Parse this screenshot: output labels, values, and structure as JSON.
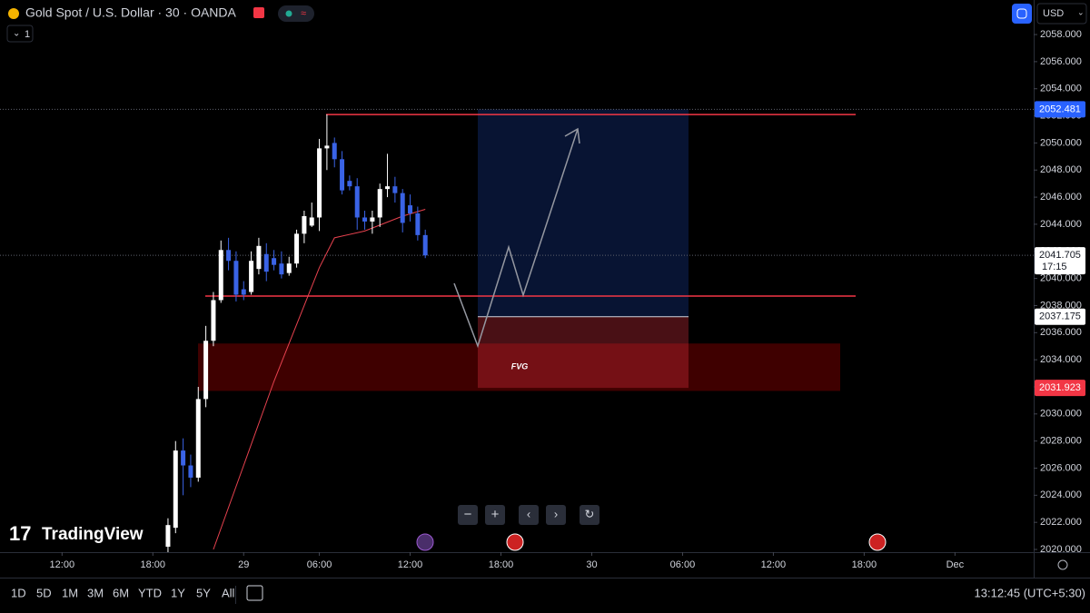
{
  "header": {
    "symbol": "Gold Spot / U.S. Dollar · 30 · OANDA",
    "indicator_count": 1,
    "currency": "USD"
  },
  "footer": {
    "ranges": [
      "1D",
      "5D",
      "1M",
      "3M",
      "6M",
      "YTD",
      "1Y",
      "5Y",
      "All"
    ],
    "clock": "13:12:45 (UTC+5:30)"
  },
  "brand": "TradingView",
  "chart_data": {
    "type": "candlestick",
    "x": [
      2,
      3,
      4,
      5,
      6,
      7,
      8,
      9,
      10,
      11,
      12,
      13,
      14,
      15,
      16,
      17,
      18,
      19,
      20,
      21,
      22,
      23,
      24,
      25,
      26,
      27,
      28,
      29,
      30,
      31,
      32,
      33,
      34,
      35,
      36
    ],
    "open": [
      2020.2,
      2021.6,
      2027.3,
      2026.2,
      2025.3,
      2031.1,
      2035.4,
      2038.4,
      2042.1,
      2041.3,
      2039.2,
      2039.0,
      2040.7,
      2041.8,
      2041.5,
      2041.1,
      2040.4,
      2041.1,
      2043.3,
      2043.9,
      2044.5,
      2049.6,
      2050.0,
      2048.8,
      2047.2,
      2046.8,
      2044.5,
      2044.2,
      2044.5,
      2046.6,
      2046.8,
      2046.3,
      2045.4,
      2044.8,
      2043.2
    ],
    "high": [
      2022.3,
      2028.0,
      2028.2,
      2027.0,
      2032.0,
      2036.5,
      2039.0,
      2042.8,
      2043.0,
      2042.0,
      2039.8,
      2042.0,
      2043.0,
      2042.6,
      2042.1,
      2042.0,
      2041.6,
      2043.6,
      2045.0,
      2045.6,
      2050.3,
      2052.1,
      2050.4,
      2049.4,
      2047.6,
      2047.4,
      2045.0,
      2045.0,
      2047.0,
      2049.2,
      2047.5,
      2046.6,
      2046.2,
      2045.3,
      2043.6
    ],
    "low": [
      2019.8,
      2021.2,
      2024.0,
      2024.6,
      2025.0,
      2030.5,
      2035.0,
      2038.2,
      2040.6,
      2038.3,
      2038.4,
      2038.8,
      2040.3,
      2039.8,
      2040.6,
      2040.0,
      2040.2,
      2040.8,
      2042.6,
      2043.8,
      2043.5,
      2048.0,
      2048.2,
      2046.2,
      2046.5,
      2043.6,
      2043.6,
      2043.3,
      2043.8,
      2046.0,
      2045.6,
      2043.4,
      2044.2,
      2042.8,
      2041.5
    ],
    "close": [
      2021.8,
      2027.3,
      2026.2,
      2025.3,
      2031.1,
      2035.4,
      2038.4,
      2042.1,
      2041.3,
      2038.8,
      2038.8,
      2041.3,
      2042.4,
      2040.5,
      2041.0,
      2040.3,
      2041.1,
      2043.3,
      2044.6,
      2044.5,
      2049.6,
      2049.8,
      2048.8,
      2046.5,
      2046.8,
      2044.5,
      2044.2,
      2044.5,
      2046.6,
      2046.8,
      2046.3,
      2044.1,
      2044.8,
      2043.2,
      2041.7
    ],
    "up_color": "#ffffff",
    "down_color": "#3a63e6",
    "ma": {
      "color": "#e8424f",
      "x": [
        8,
        12,
        16,
        20,
        22,
        24,
        28,
        33,
        36
      ],
      "values": [
        2020.0,
        2026.2,
        2032.4,
        2038.0,
        2040.8,
        2043.0,
        2043.5,
        2044.6,
        2045.1
      ]
    },
    "levels": [
      2052.1,
      2038.7
    ],
    "fvg": {
      "label": "FVG",
      "low": 2031.7,
      "high": 2035.2
    },
    "position": {
      "target": 2052.481,
      "entry": 2037.175,
      "stop": 2031.923
    },
    "last_price": 2041.705,
    "countdown": "17:15",
    "xlim": [
      -20.2,
      116.4
    ],
    "ylim": [
      2019.8,
      2060.55
    ],
    "xticks": [
      {
        "value": -12,
        "label": "12:00"
      },
      {
        "value": 0,
        "label": "18:00"
      },
      {
        "value": 12,
        "label": "29"
      },
      {
        "value": 22,
        "label": "06:00"
      },
      {
        "value": 34,
        "label": "12:00"
      },
      {
        "value": 46,
        "label": "18:00"
      },
      {
        "value": 58,
        "label": "30"
      },
      {
        "value": 70,
        "label": "06:00"
      },
      {
        "value": 82,
        "label": "12:00"
      },
      {
        "value": 94,
        "label": "18:00"
      },
      {
        "value": 106,
        "label": "Dec"
      }
    ],
    "yticks": [
      {
        "value": 2020,
        "label": "2020.000"
      },
      {
        "value": 2022,
        "label": "2022.000"
      },
      {
        "value": 2024,
        "label": "2024.000"
      },
      {
        "value": 2026,
        "label": "2026.000"
      },
      {
        "value": 2028,
        "label": "2028.000"
      },
      {
        "value": 2030,
        "label": "2030.000"
      },
      {
        "value": 2032,
        "label": "2032.000"
      },
      {
        "value": 2034,
        "label": "2034.000"
      },
      {
        "value": 2036,
        "label": "2036.000"
      },
      {
        "value": 2038,
        "label": "2038.000"
      },
      {
        "value": 2040,
        "label": "2040.000"
      },
      {
        "value": 2042,
        "label": "2042.000"
      },
      {
        "value": 2044,
        "label": "2044.000"
      },
      {
        "value": 2046,
        "label": "2046.000"
      },
      {
        "value": 2048,
        "label": "2048.000"
      },
      {
        "value": 2050,
        "label": "2050.000"
      },
      {
        "value": 2052,
        "label": "2052.000"
      },
      {
        "value": 2054,
        "label": "2054.000"
      },
      {
        "value": 2056,
        "label": "2056.000"
      },
      {
        "value": 2058,
        "label": "2058.000"
      }
    ]
  }
}
